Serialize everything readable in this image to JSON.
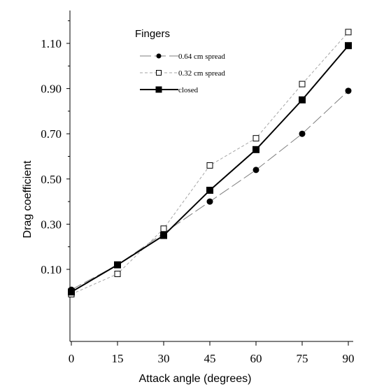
{
  "chart_data": {
    "type": "line",
    "xlabel": "Attack angle (degrees)",
    "ylabel": "Drag coefficient",
    "x": [
      0,
      15,
      30,
      45,
      60,
      75,
      90
    ],
    "xticks": [
      "0",
      "15",
      "30",
      "45",
      "60",
      "75",
      "90"
    ],
    "yticks": [
      "0.10",
      "0.30",
      "0.50",
      "0.70",
      "0.90",
      "1.10"
    ],
    "ylim": [
      -0.2,
      1.25
    ],
    "grid": false,
    "legend_title": "Fingers",
    "legend_position": "top-left",
    "series": [
      {
        "name": "0.64 cm spread",
        "marker": "filled-circle",
        "line": "long-dash",
        "color": "#7f7f7f",
        "values": [
          0.01,
          0.12,
          0.26,
          0.4,
          0.54,
          0.7,
          0.89
        ]
      },
      {
        "name": "0.32 cm spread",
        "marker": "open-square",
        "line": "short-dash",
        "color": "#a6a6a6",
        "values": [
          -0.01,
          0.08,
          0.28,
          0.56,
          0.68,
          0.92,
          1.15
        ]
      },
      {
        "name": "closed",
        "marker": "filled-square",
        "line": "solid",
        "color": "#000000",
        "values": [
          0.0,
          0.12,
          0.25,
          0.45,
          0.63,
          0.85,
          1.09
        ]
      }
    ]
  }
}
